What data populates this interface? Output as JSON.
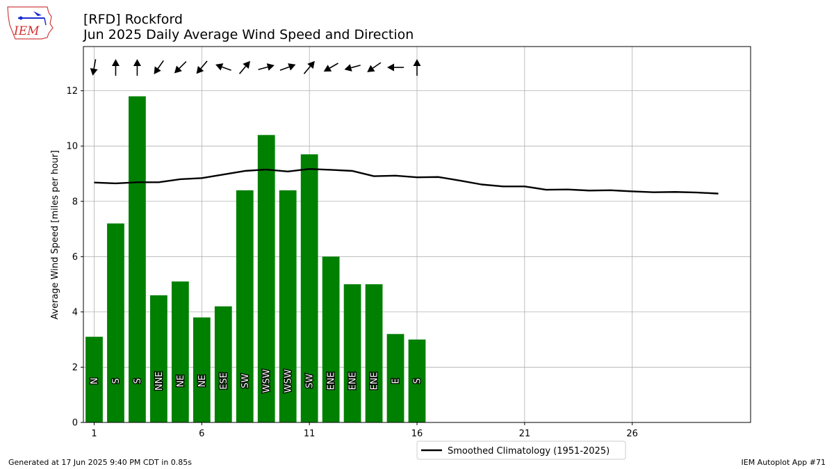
{
  "header": {
    "title_line1": "[RFD] Rockford",
    "title_line2": "Jun 2025 Daily Average Wind Speed and Direction"
  },
  "logo": {
    "text": "IEM"
  },
  "footer": {
    "generated": "Generated at 17 Jun 2025 9:40 PM CDT in 0.85s",
    "app": "IEM Autoplot App #71"
  },
  "colors": {
    "bars": "#008000",
    "climatology": "#000000",
    "grid": "#b0b0b0"
  },
  "chart_data": {
    "type": "bar",
    "title": "Jun 2025 Daily Average Wind Speed and Direction",
    "ylabel": "Average Wind Speed [miles per hour]",
    "xlim": [
      0.5,
      31.5
    ],
    "ylim": [
      0,
      13.6
    ],
    "xticks": [
      1,
      6,
      11,
      16,
      21,
      26
    ],
    "yticks": [
      0,
      2,
      4,
      6,
      8,
      10,
      12
    ],
    "grid": true,
    "legend_position": "bottom-center",
    "days": [
      1,
      2,
      3,
      4,
      5,
      6,
      7,
      8,
      9,
      10,
      11,
      12,
      13,
      14,
      15,
      16
    ],
    "speed": [
      3.1,
      7.2,
      11.8,
      4.6,
      5.1,
      3.8,
      4.2,
      8.4,
      10.4,
      8.4,
      9.7,
      6.0,
      5.0,
      5.0,
      3.2,
      3.0
    ],
    "direction": [
      "N",
      "S",
      "S",
      "NNE",
      "NE",
      "NE",
      "ESE",
      "SW",
      "WSW",
      "WSW",
      "SW",
      "ENE",
      "ENE",
      "ENE",
      "E",
      "S"
    ],
    "arrow_heading_deg": [
      190,
      0,
      0,
      215,
      225,
      220,
      290,
      40,
      75,
      70,
      40,
      240,
      255,
      235,
      270,
      0
    ],
    "climatology": {
      "name": "Smoothed Climatology (1951-2025)",
      "x": [
        1,
        2,
        3,
        4,
        5,
        6,
        7,
        8,
        9,
        10,
        11,
        12,
        13,
        14,
        15,
        16,
        17,
        18,
        19,
        20,
        21,
        22,
        23,
        24,
        25,
        26,
        27,
        28,
        29,
        30
      ],
      "y": [
        8.68,
        8.65,
        8.69,
        8.69,
        8.8,
        8.84,
        8.97,
        9.1,
        9.15,
        9.08,
        9.17,
        9.14,
        9.1,
        8.91,
        8.93,
        8.87,
        8.88,
        8.75,
        8.61,
        8.54,
        8.54,
        8.42,
        8.43,
        8.39,
        8.4,
        8.36,
        8.33,
        8.34,
        8.32,
        8.28
      ]
    }
  }
}
